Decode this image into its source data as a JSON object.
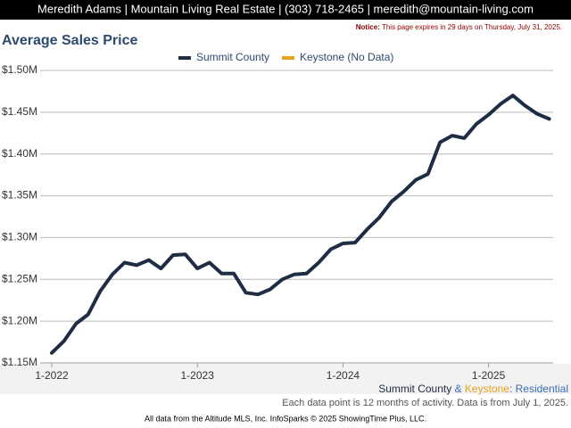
{
  "header": {
    "contact": "Meredith Adams | Mountain Living Real Estate | (303) 718-2465 | meredith@mountain-living.com",
    "notice_label": "Notice:",
    "notice_text": " This page expires in 29 days on Thursday, July 31, 2025."
  },
  "chart_data": {
    "type": "line",
    "title": "Average Sales Price",
    "categories": [
      "1-2022",
      null,
      null,
      null,
      null,
      null,
      null,
      null,
      null,
      null,
      null,
      null,
      "1-2023",
      null,
      null,
      null,
      null,
      null,
      null,
      null,
      null,
      null,
      null,
      null,
      "1-2024",
      null,
      null,
      null,
      null,
      null,
      null,
      null,
      null,
      null,
      null,
      null,
      "1-2025",
      null,
      null,
      null,
      null,
      null
    ],
    "series": [
      {
        "name": "Summit County",
        "color": "#1f2d44",
        "values": [
          1162000,
          1176000,
          1197000,
          1208000,
          1236000,
          1256000,
          1270000,
          1267000,
          1273000,
          1263000,
          1279000,
          1280000,
          1263000,
          1270000,
          1257000,
          1257000,
          1234000,
          1232000,
          1238000,
          1250000,
          1256000,
          1257000,
          1270000,
          1286000,
          1293000,
          1294000,
          1310000,
          1324000,
          1343000,
          1355000,
          1369000,
          1376000,
          1414000,
          1422000,
          1419000,
          1436000,
          1447000,
          1460000,
          1470000,
          1458000,
          1448000,
          1442000
        ]
      },
      {
        "name": "Keystone (No Data)",
        "color": "#e8a21c",
        "values": [
          null,
          null,
          null,
          null,
          null,
          null,
          null,
          null,
          null,
          null,
          null,
          null,
          null,
          null,
          null,
          null,
          null,
          null,
          null,
          null,
          null,
          null,
          null,
          null,
          null,
          null,
          null,
          null,
          null,
          null,
          null,
          null,
          null,
          null,
          null,
          null,
          null,
          null,
          null,
          null,
          null,
          null
        ]
      }
    ],
    "ylim": [
      1150000,
      1500000
    ],
    "yticks": [
      {
        "value": 1150000,
        "label": "$1.15M"
      },
      {
        "value": 1200000,
        "label": "$1.20M"
      },
      {
        "value": 1250000,
        "label": "$1.25M"
      },
      {
        "value": 1300000,
        "label": "$1.30M"
      },
      {
        "value": 1350000,
        "label": "$1.35M"
      },
      {
        "value": 1400000,
        "label": "$1.40M"
      },
      {
        "value": 1450000,
        "label": "$1.45M"
      },
      {
        "value": 1500000,
        "label": "$1.50M"
      }
    ],
    "grid": true,
    "legend": "top",
    "caption_parts": [
      {
        "text": "Summit County",
        "color": "#1f2d44"
      },
      {
        "text": " & ",
        "color": "#3b6db3"
      },
      {
        "text": "Keystone",
        "color": "#e8a21c"
      },
      {
        "text": ": Residential",
        "color": "#3b6db3"
      }
    ],
    "note": "Each data point is 12 months of activity. Data is from July 1, 2025.",
    "source": "All data from the Altitude MLS, Inc. InfoSparks © 2025 ShowingTime Plus, LLC."
  }
}
